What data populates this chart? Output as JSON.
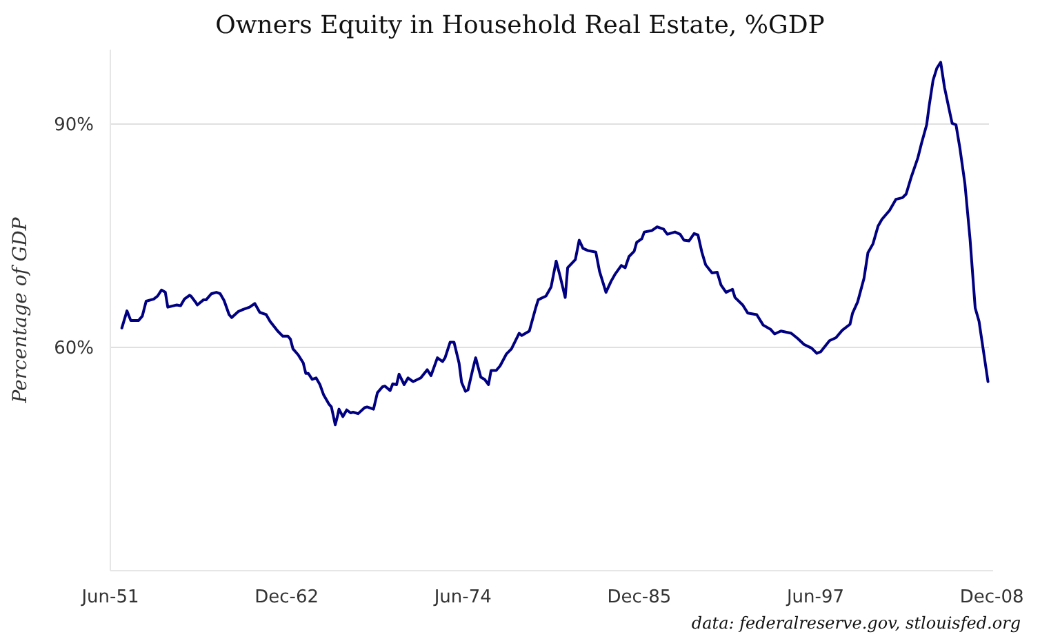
{
  "chart_data": {
    "type": "line",
    "title": "Owners Equity in Household Real Estate, %GDP",
    "ylabel": "Percentage of GDP",
    "annotations": [
      "data: federalreserve.gov, stlouisfed.org"
    ],
    "xlim": [
      "1951-06",
      "2009-01"
    ],
    "xticks": [
      {
        "value": "1951-06",
        "label": "Jun-51"
      },
      {
        "value": "1962-12",
        "label": "Dec-62"
      },
      {
        "value": "1974-06",
        "label": "Jun-74"
      },
      {
        "value": "1985-12",
        "label": "Dec-85"
      },
      {
        "value": "1997-06",
        "label": "Jun-97"
      },
      {
        "value": "2008-12",
        "label": "Dec-08"
      }
    ],
    "ylim": [
      30,
      100
    ],
    "yticks": [
      {
        "value": 60,
        "label": "60%"
      },
      {
        "value": 90,
        "label": "90%"
      }
    ],
    "grid": "y",
    "marker": "none",
    "line_style": "solid",
    "series": [
      {
        "color": "#000080",
        "x": [
          "1952-03",
          "1952-07",
          "1952-10",
          "1953-04",
          "1953-07",
          "1953-10",
          "1954-04",
          "1954-07",
          "1954-10",
          "1955-01",
          "1955-03",
          "1955-10",
          "1956-01",
          "1956-04",
          "1956-08",
          "1956-09",
          "1957-01",
          "1957-02",
          "1957-07",
          "1957-09",
          "1958-01",
          "1958-05",
          "1958-08",
          "1958-11",
          "1959-03",
          "1959-05",
          "1959-10",
          "1960-02",
          "1960-07",
          "1960-11",
          "1961-03",
          "1961-08",
          "1961-11",
          "1962-05",
          "1962-09",
          "1963-01",
          "1963-03",
          "1963-05",
          "1963-09",
          "1964-01",
          "1964-03",
          "1964-05",
          "1964-08",
          "1964-11",
          "1965-02",
          "1965-05",
          "1965-09",
          "1965-11",
          "1966-02",
          "1966-04",
          "1966-05",
          "1966-08",
          "1966-11",
          "1967-02",
          "1967-04",
          "1967-08",
          "1968-01",
          "1968-03",
          "1968-08",
          "1968-11",
          "1969-03",
          "1969-05",
          "1969-09",
          "1969-11",
          "1970-02",
          "1970-04",
          "1970-08",
          "1970-11",
          "1971-03",
          "1971-09",
          "1972-02",
          "1972-05",
          "1972-10",
          "1973-02",
          "1973-04",
          "1973-08",
          "1973-11",
          "1974-03",
          "1974-05",
          "1974-08",
          "1974-10",
          "1975-02",
          "1975-04",
          "1975-08",
          "1975-11",
          "1976-02",
          "1976-04",
          "1976-08",
          "1976-11",
          "1977-04",
          "1977-08",
          "1978-02",
          "1978-04",
          "1978-08",
          "1978-10",
          "1979-03",
          "1979-05",
          "1979-11",
          "1980-03",
          "1980-07",
          "1980-10",
          "1981-02",
          "1981-04",
          "1981-10",
          "1982-01",
          "1982-04",
          "1982-08",
          "1983-02",
          "1983-05",
          "1983-10",
          "1984-02",
          "1984-05",
          "1984-10",
          "1985-01",
          "1985-04",
          "1985-08",
          "1985-10",
          "1986-02",
          "1986-04",
          "1986-10",
          "1987-02",
          "1987-07",
          "1987-10",
          "1988-04",
          "1988-08",
          "1988-11",
          "1989-03",
          "1989-07",
          "1989-10",
          "1990-01",
          "1990-04",
          "1990-09",
          "1991-01",
          "1991-04",
          "1991-08",
          "1992-01",
          "1992-03",
          "1992-09",
          "1993-01",
          "1993-08",
          "1994-01",
          "1994-07",
          "1994-10",
          "1995-03",
          "1995-11",
          "1996-04",
          "1996-09",
          "1997-03",
          "1997-07",
          "1997-10",
          "1998-05",
          "1998-10",
          "1999-03",
          "1999-09",
          "1999-11",
          "2000-03",
          "2000-08",
          "2000-11",
          "2001-03",
          "2001-07",
          "2001-10",
          "2002-04",
          "2002-09",
          "2003-02",
          "2003-05",
          "2003-09",
          "2004-02",
          "2004-05",
          "2004-09",
          "2004-11",
          "2005-02",
          "2005-05",
          "2005-08",
          "2005-11",
          "2006-03",
          "2006-05",
          "2006-08",
          "2006-11",
          "2007-03",
          "2007-07",
          "2007-11",
          "2008-02",
          "2008-09"
        ],
        "values": [
          62.6,
          64.9,
          63.6,
          63.6,
          64.2,
          66.2,
          66.5,
          66.9,
          67.7,
          67.4,
          65.4,
          65.7,
          65.6,
          66.5,
          67.0,
          66.9,
          66.0,
          65.7,
          66.4,
          66.4,
          67.2,
          67.4,
          67.2,
          66.3,
          64.4,
          64.0,
          64.8,
          65.1,
          65.4,
          65.9,
          64.7,
          64.4,
          63.5,
          62.2,
          61.5,
          61.5,
          61.1,
          59.8,
          59.0,
          57.9,
          56.5,
          56.5,
          55.7,
          55.9,
          55.0,
          53.6,
          52.4,
          52.0,
          49.6,
          50.9,
          51.7,
          50.7,
          51.6,
          51.2,
          51.3,
          51.1,
          51.9,
          52.0,
          51.7,
          53.9,
          54.7,
          54.8,
          54.2,
          55.1,
          55.0,
          56.4,
          55.0,
          55.9,
          55.4,
          55.9,
          57.0,
          56.2,
          58.6,
          58.1,
          58.6,
          60.7,
          60.7,
          57.9,
          55.3,
          54.1,
          54.3,
          57.3,
          58.6,
          56.0,
          55.7,
          55.0,
          56.9,
          56.9,
          57.5,
          59.1,
          59.8,
          61.9,
          61.6,
          62.0,
          62.2,
          65.3,
          66.4,
          66.9,
          68.1,
          71.6,
          69.6,
          66.7,
          70.7,
          71.8,
          74.4,
          73.3,
          73.0,
          72.8,
          70.2,
          67.4,
          68.9,
          69.8,
          71.0,
          70.7,
          72.2,
          72.9,
          74.1,
          74.6,
          75.5,
          75.7,
          76.2,
          75.9,
          75.2,
          75.5,
          75.2,
          74.4,
          74.3,
          75.3,
          75.1,
          72.8,
          71.1,
          70.0,
          70.1,
          68.4,
          67.4,
          67.8,
          66.7,
          65.7,
          64.6,
          64.4,
          63.0,
          62.4,
          61.8,
          62.2,
          61.9,
          61.2,
          60.4,
          59.9,
          59.2,
          59.4,
          60.9,
          61.3,
          62.3,
          63.1,
          64.6,
          66.1,
          69.3,
          72.7,
          73.9,
          76.3,
          77.2,
          78.4,
          79.9,
          80.1,
          80.6,
          82.9,
          85.4,
          87.4,
          89.9,
          92.5,
          95.9,
          97.5,
          98.3,
          94.9,
          91.7,
          90.1,
          89.9,
          86.8,
          82.0,
          74.6,
          65.3,
          63.5,
          55.4
        ]
      }
    ]
  }
}
